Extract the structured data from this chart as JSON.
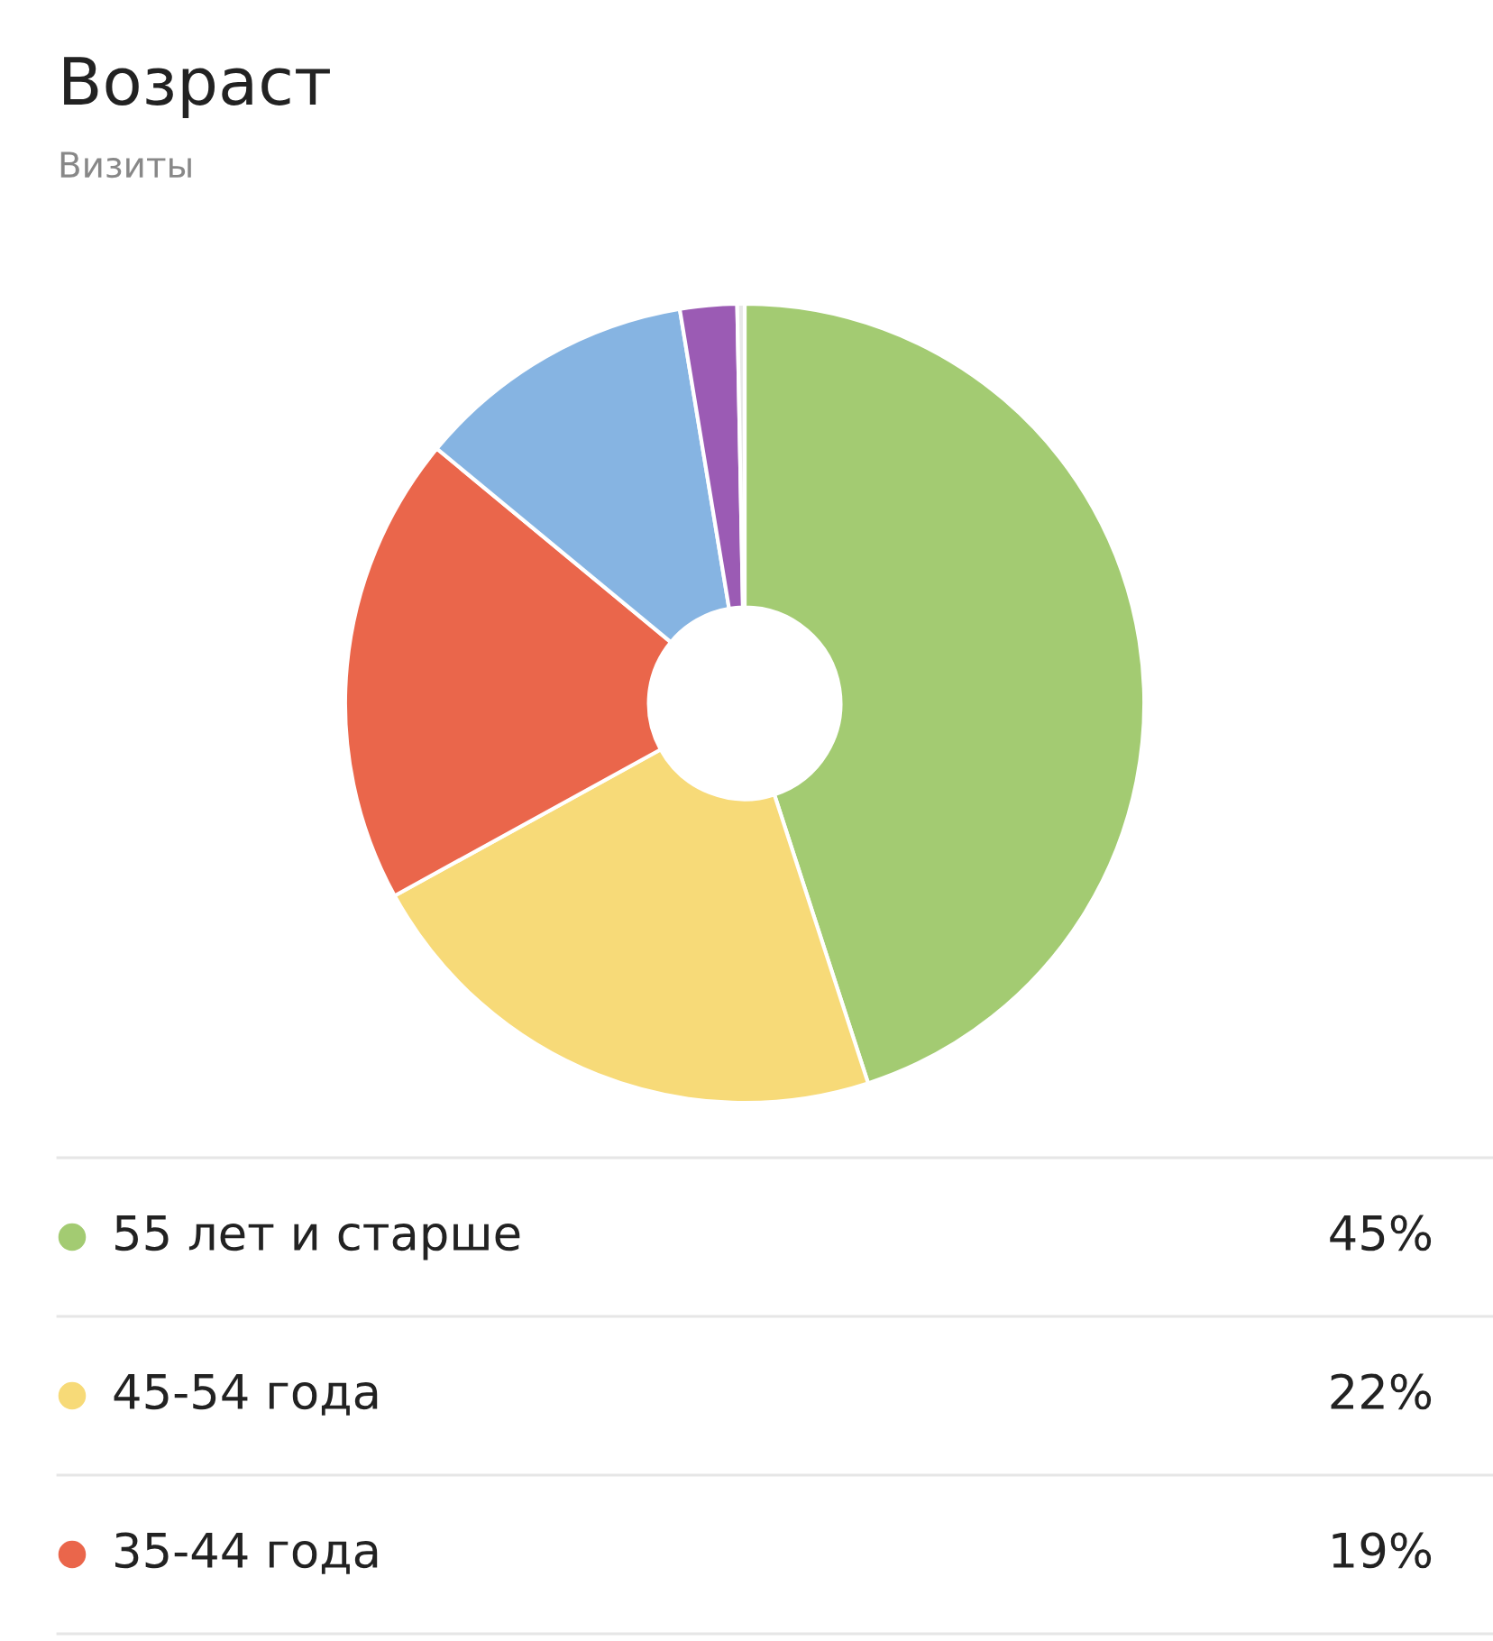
{
  "chart_data": {
    "type": "donut",
    "title": "Возраст",
    "subtitle": "Визиты",
    "categories": [
      "55 лет и старше",
      "45-54 года",
      "35-44 года",
      null,
      null,
      null
    ],
    "values": [
      45,
      22,
      19,
      11.4,
      2.3,
      0.3
    ],
    "colors": [
      "#a3cb72",
      "#f7da78",
      "#ea664b",
      "#86b4e2",
      "#9b5bb4",
      "#e8e8e8"
    ],
    "value_labels": [
      "45%",
      "22%",
      "19%",
      null,
      null,
      null
    ],
    "legend": "bottom"
  }
}
